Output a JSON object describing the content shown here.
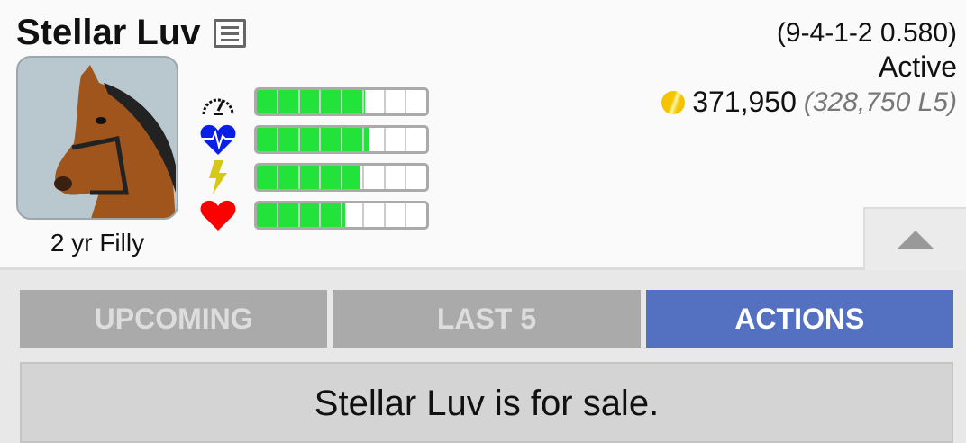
{
  "horse": {
    "name": "Stellar Luv",
    "age_sex": "2 yr Filly",
    "record": "(9-4-1-2 0.580)",
    "status": "Active",
    "earnings": "371,950",
    "last5_earnings": "(328,750 L5)"
  },
  "stats": [
    {
      "icon": "speedometer-icon",
      "fill_fraction": 0.64
    },
    {
      "icon": "heart-pulse-icon",
      "fill_fraction": 0.66
    },
    {
      "icon": "lightning-icon",
      "fill_fraction": 0.61
    },
    {
      "icon": "heart-icon",
      "fill_fraction": 0.52
    }
  ],
  "tabs": [
    {
      "label": "UPCOMING",
      "active": false
    },
    {
      "label": "LAST 5",
      "active": false
    },
    {
      "label": "ACTIONS",
      "active": true
    }
  ],
  "panel": {
    "message": "Stellar Luv is for sale."
  },
  "colors": {
    "bar_fill": "#22e33a",
    "active_tab": "#5470c0",
    "inactive_tab": "#aaaaaa"
  }
}
